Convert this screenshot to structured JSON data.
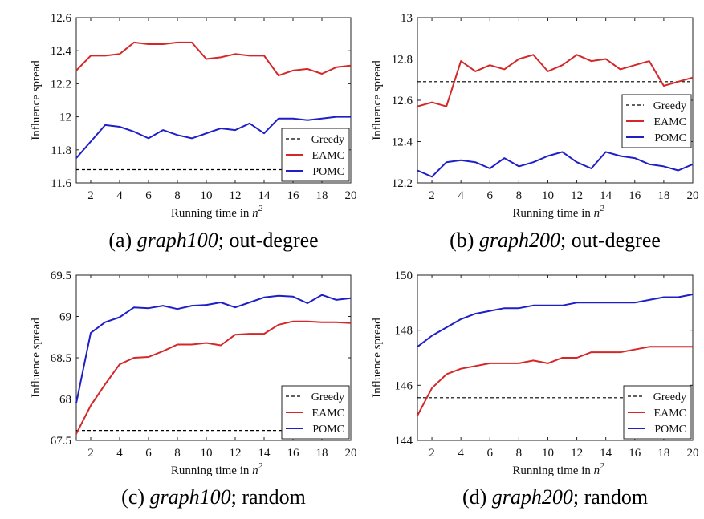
{
  "chart_data": [
    {
      "type": "line",
      "caption": {
        "label": "(a)",
        "graph": "graph100",
        "rest": "; out-degree"
      },
      "xlabel": "Running time in",
      "xlabel_sym": "n",
      "xlabel_exp": "2",
      "ylabel": "Influence spread",
      "xlim": [
        1,
        20
      ],
      "ylim": [
        11.6,
        12.6
      ],
      "xticks": [
        2,
        4,
        6,
        8,
        10,
        12,
        14,
        16,
        18,
        20
      ],
      "yticks": [
        11.6,
        11.8,
        12,
        12.2,
        12.4,
        12.6
      ],
      "ytick_labels": [
        "11.6",
        "11.8",
        "12",
        "12.2",
        "12.4",
        "12.6"
      ],
      "legend_position": "bottom-right",
      "x": [
        1,
        2,
        3,
        4,
        5,
        6,
        7,
        8,
        9,
        10,
        11,
        12,
        13,
        14,
        15,
        16,
        17,
        18,
        19,
        20
      ],
      "series": [
        {
          "name": "Greedy",
          "color": "#000000",
          "style": "dashed",
          "values": [
            11.68,
            11.68,
            11.68,
            11.68,
            11.68,
            11.68,
            11.68,
            11.68,
            11.68,
            11.68,
            11.68,
            11.68,
            11.68,
            11.68,
            11.68,
            11.68,
            11.68,
            11.68,
            11.68,
            11.68
          ]
        },
        {
          "name": "EAMC",
          "color": "#d62728",
          "style": "solid",
          "values": [
            12.28,
            12.37,
            12.37,
            12.38,
            12.45,
            12.44,
            12.44,
            12.45,
            12.45,
            12.35,
            12.36,
            12.38,
            12.37,
            12.37,
            12.25,
            12.28,
            12.29,
            12.26,
            12.3,
            12.31
          ]
        },
        {
          "name": "POMC",
          "color": "#1f1fc8",
          "style": "solid",
          "values": [
            11.75,
            11.85,
            11.95,
            11.94,
            11.91,
            11.87,
            11.92,
            11.89,
            11.87,
            11.9,
            11.93,
            11.92,
            11.96,
            11.9,
            11.99,
            11.99,
            11.98,
            11.99,
            12.0,
            12.0
          ]
        }
      ]
    },
    {
      "type": "line",
      "caption": {
        "label": "(b)",
        "graph": "graph200",
        "rest": "; out-degree"
      },
      "xlabel": "Running time in",
      "xlabel_sym": "n",
      "xlabel_exp": "2",
      "ylabel": "Influence spread",
      "xlim": [
        1,
        20
      ],
      "ylim": [
        12.2,
        13.0
      ],
      "xticks": [
        2,
        4,
        6,
        8,
        10,
        12,
        14,
        16,
        18,
        20
      ],
      "yticks": [
        12.2,
        12.4,
        12.6,
        12.8,
        13.0
      ],
      "ytick_labels": [
        "12.2",
        "12.4",
        "12.6",
        "12.8",
        "13"
      ],
      "legend_position": "middle-right",
      "x": [
        1,
        2,
        3,
        4,
        5,
        6,
        7,
        8,
        9,
        10,
        11,
        12,
        13,
        14,
        15,
        16,
        17,
        18,
        19,
        20
      ],
      "series": [
        {
          "name": "Greedy",
          "color": "#000000",
          "style": "dashed",
          "values": [
            12.69,
            12.69,
            12.69,
            12.69,
            12.69,
            12.69,
            12.69,
            12.69,
            12.69,
            12.69,
            12.69,
            12.69,
            12.69,
            12.69,
            12.69,
            12.69,
            12.69,
            12.69,
            12.69,
            12.69
          ]
        },
        {
          "name": "EAMC",
          "color": "#d62728",
          "style": "solid",
          "values": [
            12.57,
            12.59,
            12.57,
            12.79,
            12.74,
            12.77,
            12.75,
            12.8,
            12.82,
            12.74,
            12.77,
            12.82,
            12.79,
            12.8,
            12.75,
            12.77,
            12.79,
            12.67,
            12.69,
            12.71
          ]
        },
        {
          "name": "POMC",
          "color": "#1f1fc8",
          "style": "solid",
          "values": [
            12.26,
            12.23,
            12.3,
            12.31,
            12.3,
            12.27,
            12.32,
            12.28,
            12.3,
            12.33,
            12.35,
            12.3,
            12.27,
            12.35,
            12.33,
            12.32,
            12.29,
            12.28,
            12.26,
            12.29
          ]
        }
      ]
    },
    {
      "type": "line",
      "caption": {
        "label": "(c)",
        "graph": "graph100",
        "rest": "; random"
      },
      "xlabel": "Running time in",
      "xlabel_sym": "n",
      "xlabel_exp": "2",
      "ylabel": "Influence spread",
      "xlim": [
        1,
        20
      ],
      "ylim": [
        67.5,
        69.5
      ],
      "xticks": [
        2,
        4,
        6,
        8,
        10,
        12,
        14,
        16,
        18,
        20
      ],
      "yticks": [
        67.5,
        68,
        68.5,
        69,
        69.5
      ],
      "ytick_labels": [
        "67.5",
        "68",
        "68.5",
        "69",
        "69.5"
      ],
      "legend_position": "bottom-right",
      "x": [
        1,
        2,
        3,
        4,
        5,
        6,
        7,
        8,
        9,
        10,
        11,
        12,
        13,
        14,
        15,
        16,
        17,
        18,
        19,
        20
      ],
      "series": [
        {
          "name": "Greedy",
          "color": "#000000",
          "style": "dashed",
          "values": [
            67.62,
            67.62,
            67.62,
            67.62,
            67.62,
            67.62,
            67.62,
            67.62,
            67.62,
            67.62,
            67.62,
            67.62,
            67.62,
            67.62,
            67.62,
            67.62,
            67.62,
            67.62,
            67.62,
            67.62
          ]
        },
        {
          "name": "EAMC",
          "color": "#d62728",
          "style": "solid",
          "values": [
            67.58,
            67.92,
            68.18,
            68.42,
            68.5,
            68.51,
            68.58,
            68.66,
            68.66,
            68.68,
            68.65,
            68.78,
            68.79,
            68.79,
            68.9,
            68.94,
            68.94,
            68.93,
            68.93,
            68.92
          ]
        },
        {
          "name": "POMC",
          "color": "#1f1fc8",
          "style": "solid",
          "values": [
            67.95,
            68.8,
            68.93,
            68.99,
            69.11,
            69.1,
            69.13,
            69.09,
            69.13,
            69.14,
            69.17,
            69.11,
            69.17,
            69.23,
            69.25,
            69.24,
            69.16,
            69.26,
            69.2,
            69.22
          ]
        }
      ]
    },
    {
      "type": "line",
      "caption": {
        "label": "(d)",
        "graph": "graph200",
        "rest": "; random"
      },
      "xlabel": "Running time in",
      "xlabel_sym": "n",
      "xlabel_exp": "2",
      "ylabel": "Influence spread",
      "xlim": [
        1,
        20
      ],
      "ylim": [
        144,
        150
      ],
      "xticks": [
        2,
        4,
        6,
        8,
        10,
        12,
        14,
        16,
        18,
        20
      ],
      "yticks": [
        144,
        146,
        148,
        150
      ],
      "ytick_labels": [
        "144",
        "146",
        "148",
        "150"
      ],
      "legend_position": "bottom-right",
      "x": [
        1,
        2,
        3,
        4,
        5,
        6,
        7,
        8,
        9,
        10,
        11,
        12,
        13,
        14,
        15,
        16,
        17,
        18,
        19,
        20
      ],
      "series": [
        {
          "name": "Greedy",
          "color": "#000000",
          "style": "dashed",
          "values": [
            145.55,
            145.55,
            145.55,
            145.55,
            145.55,
            145.55,
            145.55,
            145.55,
            145.55,
            145.55,
            145.55,
            145.55,
            145.55,
            145.55,
            145.55,
            145.55,
            145.55,
            145.55,
            145.55,
            145.55
          ]
        },
        {
          "name": "EAMC",
          "color": "#d62728",
          "style": "solid",
          "values": [
            144.9,
            145.9,
            146.4,
            146.6,
            146.7,
            146.8,
            146.8,
            146.8,
            146.9,
            146.8,
            147.0,
            147.0,
            147.2,
            147.2,
            147.2,
            147.3,
            147.4,
            147.4,
            147.4,
            147.4
          ]
        },
        {
          "name": "POMC",
          "color": "#1f1fc8",
          "style": "solid",
          "values": [
            147.4,
            147.8,
            148.1,
            148.4,
            148.6,
            148.7,
            148.8,
            148.8,
            148.9,
            148.9,
            148.9,
            149.0,
            149.0,
            149.0,
            149.0,
            149.0,
            149.1,
            149.2,
            149.2,
            149.3
          ]
        }
      ]
    }
  ]
}
